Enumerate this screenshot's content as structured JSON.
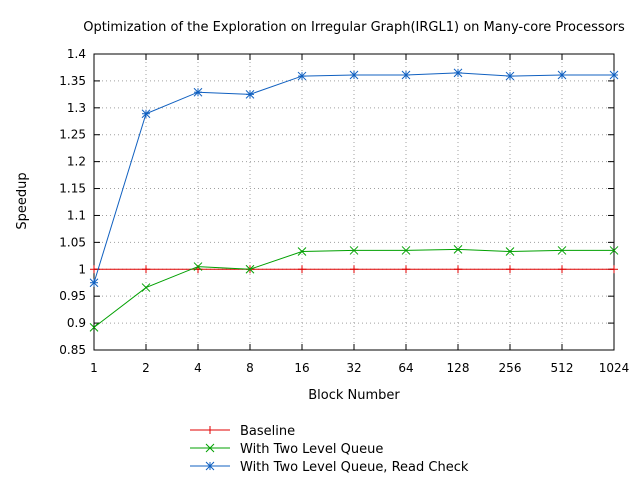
{
  "chart_data": {
    "type": "line",
    "title": "Optimization of the Exploration on Irregular Graph(IRGL1) on Many-core Processors",
    "xlabel": "Block Number",
    "ylabel": "Speedup",
    "categories": [
      "1",
      "2",
      "4",
      "8",
      "16",
      "32",
      "64",
      "128",
      "256",
      "512",
      "1024"
    ],
    "ylim": [
      0.85,
      1.4
    ],
    "yticks": [
      "0.85",
      "0.9",
      "0.95",
      "1",
      "1.05",
      "1.1",
      "1.15",
      "1.2",
      "1.25",
      "1.3",
      "1.35",
      "1.4"
    ],
    "grid": true,
    "legend_position": "bottom",
    "series": [
      {
        "name": "Baseline",
        "color": "#e00000",
        "marker": "plus",
        "values": [
          1,
          1,
          1,
          1,
          1,
          1,
          1,
          1,
          1,
          1,
          1
        ]
      },
      {
        "name": "With Two Level Queue",
        "color": "#00a000",
        "marker": "cross",
        "values": [
          0.892,
          0.966,
          1.005,
          1.0,
          1.033,
          1.035,
          1.035,
          1.037,
          1.033,
          1.035,
          1.035
        ]
      },
      {
        "name": "With Two Level Queue, Read Check",
        "color": "#1060c0",
        "marker": "star",
        "values": [
          0.975,
          1.289,
          1.329,
          1.325,
          1.359,
          1.361,
          1.361,
          1.365,
          1.359,
          1.361,
          1.361
        ]
      }
    ]
  }
}
